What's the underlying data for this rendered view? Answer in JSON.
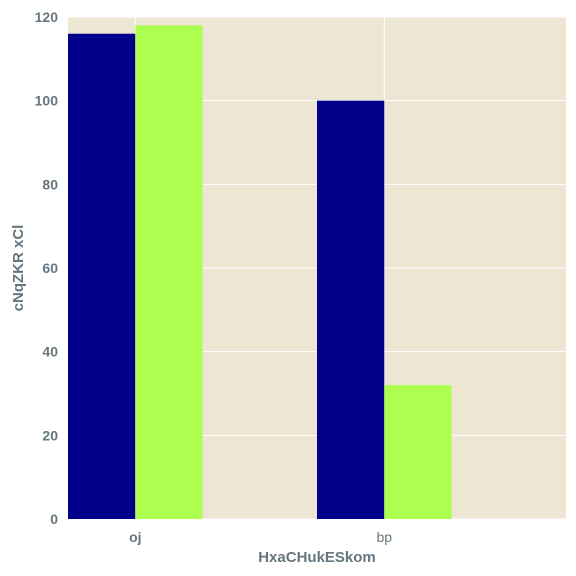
{
  "chart_data": {
    "type": "bar",
    "title": "",
    "xlabel": "HxaCHukESkom",
    "ylabel": "cNqZKR xCl",
    "categories": [
      "oj",
      "bp"
    ],
    "series": [
      {
        "values": [
          116,
          100
        ],
        "color": "#00008b"
      },
      {
        "values": [
          118,
          32
        ],
        "color": "#adff4f"
      }
    ],
    "ylim": [
      0,
      120
    ],
    "yticks": [
      0,
      20,
      40,
      60,
      80,
      100,
      120
    ],
    "grid": true,
    "legend": "none",
    "background_color": "#ede6d3",
    "grid_color": "#ffffff",
    "text_color": "#66767f"
  }
}
